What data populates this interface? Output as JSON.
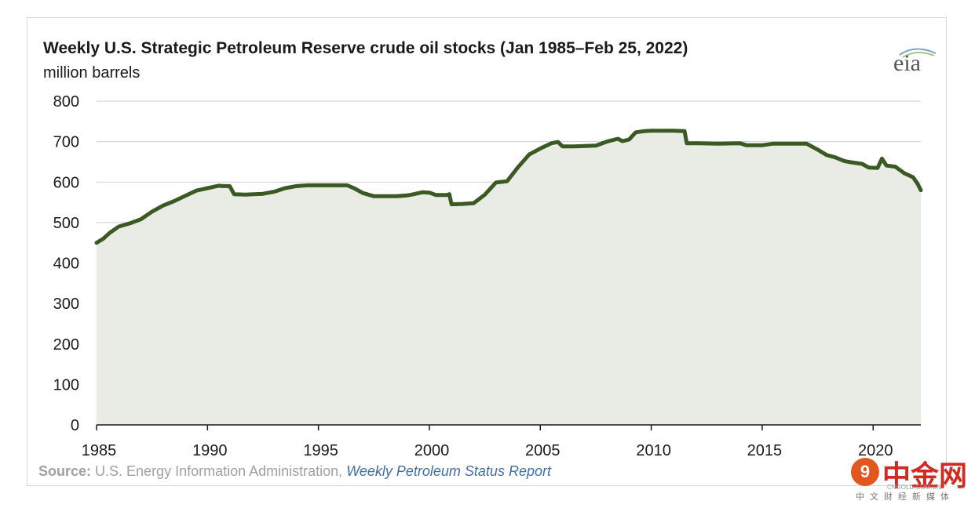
{
  "title": "Weekly U.S. Strategic Petroleum Reserve crude oil stocks (Jan 1985–Feb 25, 2022)",
  "units": "million barrels",
  "logo_text": "eia",
  "source": {
    "label": "Source:",
    "text": " U.S. Energy Information Administration, ",
    "link": "Weekly Petroleum Status Report"
  },
  "watermark": {
    "badge": "9",
    "brand": "中金网",
    "url": "CNGOLD.COM.CN",
    "tagline": "中文财经新媒体"
  },
  "colors": {
    "line": "#3b5a23",
    "fill": "#e9ece4",
    "grid": "#cfcfcf",
    "axis": "#1a1a1a"
  },
  "chart_data": {
    "type": "area",
    "title": "Weekly U.S. Strategic Petroleum Reserve crude oil stocks (Jan 1985–Feb 25, 2022)",
    "ylabel": "million barrels",
    "xlabel": "",
    "xlim": [
      1985,
      2022.15
    ],
    "ylim": [
      0,
      800
    ],
    "yticks": [
      0,
      100,
      200,
      300,
      400,
      500,
      600,
      700,
      800
    ],
    "xticks": [
      1985,
      1990,
      1995,
      2000,
      2005,
      2010,
      2015,
      2020
    ],
    "grid": true,
    "series": [
      {
        "points": [
          [
            1985.0,
            450
          ],
          [
            1985.3,
            460
          ],
          [
            1985.6,
            475
          ],
          [
            1986.0,
            490
          ],
          [
            1986.5,
            498
          ],
          [
            1987.0,
            508
          ],
          [
            1987.5,
            527
          ],
          [
            1988.0,
            542
          ],
          [
            1988.5,
            553
          ],
          [
            1989.0,
            566
          ],
          [
            1989.5,
            579
          ],
          [
            1990.0,
            585
          ],
          [
            1990.5,
            591
          ],
          [
            1990.7,
            590
          ],
          [
            1991.0,
            590
          ],
          [
            1991.2,
            570
          ],
          [
            1991.7,
            569
          ],
          [
            1992.5,
            571
          ],
          [
            1993.0,
            576
          ],
          [
            1993.5,
            585
          ],
          [
            1994.0,
            590
          ],
          [
            1994.5,
            592
          ],
          [
            1995.5,
            592
          ],
          [
            1996.3,
            592
          ],
          [
            1996.6,
            585
          ],
          [
            1997.0,
            573
          ],
          [
            1997.5,
            565
          ],
          [
            1998.5,
            565
          ],
          [
            1999.0,
            567
          ],
          [
            1999.3,
            570
          ],
          [
            1999.7,
            575
          ],
          [
            2000.0,
            574
          ],
          [
            2000.3,
            568
          ],
          [
            2000.8,
            568
          ],
          [
            2000.9,
            570
          ],
          [
            2001.0,
            545
          ],
          [
            2001.5,
            546
          ],
          [
            2002.0,
            548
          ],
          [
            2002.5,
            569
          ],
          [
            2003.0,
            599
          ],
          [
            2003.5,
            602
          ],
          [
            2004.0,
            637
          ],
          [
            2004.5,
            668
          ],
          [
            2005.0,
            683
          ],
          [
            2005.5,
            696
          ],
          [
            2005.8,
            699
          ],
          [
            2006.0,
            688
          ],
          [
            2006.5,
            688
          ],
          [
            2007.0,
            689
          ],
          [
            2007.5,
            690
          ],
          [
            2008.0,
            700
          ],
          [
            2008.5,
            707
          ],
          [
            2008.7,
            701
          ],
          [
            2009.0,
            705
          ],
          [
            2009.3,
            723
          ],
          [
            2009.7,
            726
          ],
          [
            2010.0,
            727
          ],
          [
            2010.5,
            727
          ],
          [
            2011.0,
            727
          ],
          [
            2011.5,
            726
          ],
          [
            2011.6,
            696
          ],
          [
            2012.0,
            696
          ],
          [
            2013.0,
            695
          ],
          [
            2014.0,
            696
          ],
          [
            2014.3,
            691
          ],
          [
            2015.0,
            691
          ],
          [
            2015.5,
            695
          ],
          [
            2016.0,
            695
          ],
          [
            2016.5,
            695
          ],
          [
            2017.0,
            695
          ],
          [
            2017.5,
            680
          ],
          [
            2017.9,
            667
          ],
          [
            2018.3,
            661
          ],
          [
            2018.7,
            652
          ],
          [
            2019.0,
            649
          ],
          [
            2019.5,
            645
          ],
          [
            2019.8,
            636
          ],
          [
            2020.2,
            635
          ],
          [
            2020.4,
            658
          ],
          [
            2020.6,
            641
          ],
          [
            2021.0,
            638
          ],
          [
            2021.4,
            622
          ],
          [
            2021.8,
            612
          ],
          [
            2022.0,
            596
          ],
          [
            2022.15,
            580
          ]
        ]
      }
    ]
  }
}
